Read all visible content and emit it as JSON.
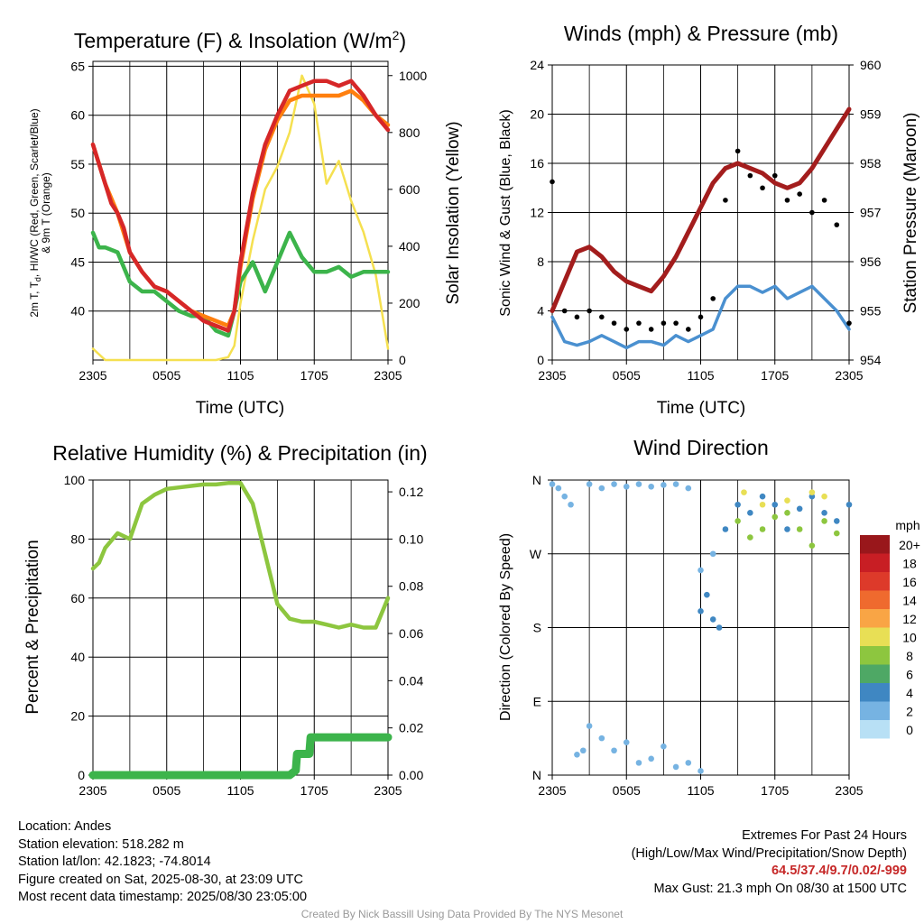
{
  "charts": {
    "temp": {
      "title_main": "Temperature (F) & Insolation (W/m",
      "title_sup": "2",
      "title_end": ")",
      "ylabel_l1_a": "2m T, T",
      "ylabel_l1_sub": "d",
      "ylabel_l1_b": ", HI/WC (Red, Green, Scarlet/Blue)",
      "ylabel_l2": "& 9m T (Orange)",
      "ylabel_right": "Solar Insolation (Yellow)",
      "xlabel": "Time (UTC)"
    },
    "wind": {
      "title": "Winds (mph) & Pressure (mb)",
      "ylabel_left": "Sonic Wind & Gust (Blue, Black)",
      "ylabel_right": "Station Pressure (Maroon)",
      "xlabel": "Time (UTC)"
    },
    "rh": {
      "title": "Relative Humidity (%) & Precipitation (in)",
      "ylabel_left": "Percent & Precipitation"
    },
    "dir": {
      "title": "Wind Direction",
      "ylabel_left": "Direction (Colored By Speed)",
      "legend_title": "mph"
    }
  },
  "chart_data": [
    {
      "type": "line",
      "title": "Temperature (F) & Insolation (W/m2)",
      "xlabel": "Time (UTC)",
      "x_ticks": [
        "2305",
        "0505",
        "1105",
        "1705",
        "2305"
      ],
      "ylim_left": [
        35,
        65.5
      ],
      "ylim_right": [
        0,
        1050
      ],
      "y_ticks_left": [
        40,
        45,
        50,
        55,
        60,
        65
      ],
      "y_ticks_right": [
        0,
        200,
        400,
        600,
        800,
        1000
      ],
      "series": [
        {
          "name": "2m T",
          "color": "#d62728",
          "axis": "left",
          "x": [
            0,
            0.5,
            1,
            1.5,
            2,
            2.5,
            3,
            4,
            5,
            6,
            7,
            8,
            9,
            10,
            11,
            11.5,
            12,
            13,
            14,
            15,
            16,
            17,
            18,
            19,
            20,
            21,
            22,
            23,
            24
          ],
          "y": [
            57,
            55,
            53,
            51,
            50,
            48.5,
            46,
            44,
            42.5,
            42,
            41,
            40,
            39,
            38.5,
            38,
            40,
            45,
            52,
            57,
            60,
            62.5,
            63,
            63.5,
            63.5,
            63,
            63.5,
            62,
            60,
            58.5
          ]
        },
        {
          "name": "9m T",
          "color": "#ff7f0e",
          "axis": "left",
          "x": [
            0,
            1,
            2,
            3,
            4,
            5,
            6,
            7,
            8,
            9,
            10,
            11,
            11.5,
            12,
            13,
            14,
            15,
            16,
            17,
            18,
            19,
            20,
            21,
            22,
            23,
            24
          ],
          "y": [
            57,
            53,
            50,
            46,
            44,
            42.5,
            42,
            41,
            40,
            39.5,
            39,
            38.5,
            40,
            44.5,
            51.5,
            56.5,
            59.5,
            61.5,
            62,
            62,
            62,
            62,
            62.5,
            61.5,
            60,
            59
          ]
        },
        {
          "name": "Td",
          "color": "#3cb44b",
          "axis": "left",
          "x": [
            0,
            0.5,
            1,
            2,
            3,
            4,
            5,
            6,
            7,
            8,
            9,
            10,
            11,
            11.5,
            12,
            13,
            14,
            15,
            16,
            17,
            18,
            19,
            20,
            21,
            22,
            23,
            24
          ],
          "y": [
            48,
            46.5,
            46.5,
            46,
            43,
            42,
            42,
            41,
            40,
            39.5,
            39.5,
            38,
            37.5,
            40,
            43,
            45,
            42,
            45,
            48,
            45.5,
            44,
            44,
            44.5,
            43.5,
            44,
            44,
            44
          ]
        },
        {
          "name": "Solar Insolation",
          "color": "#f5e050",
          "axis": "right",
          "x": [
            0,
            1,
            2,
            3,
            4,
            5,
            6,
            7,
            8,
            9,
            10,
            11,
            11.5,
            12,
            13,
            14,
            15,
            16,
            17,
            18,
            19,
            20,
            21,
            22,
            23,
            24
          ],
          "y": [
            40,
            0,
            0,
            0,
            0,
            0,
            0,
            0,
            0,
            0,
            0,
            10,
            50,
            200,
            420,
            600,
            680,
            800,
            1000,
            900,
            620,
            700,
            560,
            450,
            300,
            40
          ]
        }
      ]
    },
    {
      "type": "line",
      "title": "Winds (mph) & Pressure (mb)",
      "xlabel": "Time (UTC)",
      "x_ticks": [
        "2305",
        "0505",
        "1105",
        "1705",
        "2305"
      ],
      "ylim_left": [
        0,
        24
      ],
      "ylim_right": [
        954,
        960
      ],
      "y_ticks_left": [
        0,
        4,
        8,
        12,
        16,
        20,
        24
      ],
      "y_ticks_right": [
        954,
        955,
        956,
        957,
        958,
        959,
        960
      ],
      "series": [
        {
          "name": "Sonic Wind",
          "color": "#4a90d0",
          "axis": "left",
          "x": [
            0,
            1,
            2,
            3,
            4,
            5,
            6,
            7,
            8,
            9,
            10,
            11,
            12,
            13,
            14,
            15,
            16,
            17,
            18,
            19,
            20,
            21,
            22,
            23,
            24
          ],
          "y": [
            3.5,
            1.5,
            1.2,
            1.5,
            2,
            1.5,
            1,
            1.5,
            1.5,
            1.2,
            2,
            1.5,
            2,
            2.5,
            5,
            6,
            6,
            5.5,
            6,
            5,
            5.5,
            6,
            5,
            4,
            2.5
          ]
        },
        {
          "name": "Gust",
          "color": "#000000",
          "axis": "left",
          "x": [
            0,
            1,
            2,
            3,
            4,
            5,
            6,
            7,
            8,
            9,
            10,
            11,
            12,
            13,
            14,
            15,
            16,
            17,
            18,
            19,
            20,
            21,
            22,
            23,
            24
          ],
          "y": [
            14.5,
            4,
            3.5,
            4,
            3.5,
            3,
            2.5,
            3,
            2.5,
            3,
            3,
            2.5,
            3.5,
            5,
            13,
            17,
            15,
            14,
            15,
            13,
            13.5,
            12,
            13,
            11,
            3
          ]
        },
        {
          "name": "Station Pressure",
          "color": "#a31d1d",
          "axis": "right",
          "x": [
            0,
            1,
            2,
            3,
            4,
            5,
            6,
            7,
            8,
            9,
            10,
            11,
            12,
            13,
            14,
            15,
            16,
            17,
            18,
            19,
            20,
            21,
            22,
            23,
            24
          ],
          "y": [
            955,
            955.6,
            956.2,
            956.3,
            956.1,
            955.8,
            955.6,
            955.5,
            955.4,
            955.7,
            956.1,
            956.6,
            957.1,
            957.6,
            957.9,
            958,
            957.9,
            957.8,
            957.6,
            957.5,
            957.6,
            957.9,
            958.3,
            958.7,
            959.1
          ]
        }
      ]
    },
    {
      "type": "line",
      "title": "Relative Humidity (%) & Precipitation (in)",
      "ylabel": "Percent & Precipitation",
      "x_ticks": [
        "2305",
        "0505",
        "1105",
        "1705",
        "2305"
      ],
      "ylim_left": [
        0,
        100
      ],
      "ylim_right": [
        0,
        0.125
      ],
      "y_ticks_left": [
        0,
        20,
        40,
        60,
        80,
        100
      ],
      "y_ticks_right": [
        "0.00",
        "0.02",
        "0.04",
        "0.06",
        "0.08",
        "0.10",
        "0.12"
      ],
      "series": [
        {
          "name": "Relative Humidity",
          "color": "#8dc63f",
          "axis": "left",
          "x": [
            0,
            0.5,
            1,
            2,
            3,
            3.5,
            4,
            5,
            6,
            7,
            8,
            9,
            10,
            11,
            12,
            13,
            14,
            15,
            16,
            17,
            18,
            19,
            20,
            21,
            22,
            23,
            24
          ],
          "y": [
            70,
            72,
            77,
            82,
            80,
            86,
            92,
            95,
            97,
            97.5,
            98,
            98.5,
            98.5,
            99,
            99,
            92,
            75,
            58,
            53,
            52,
            52,
            51,
            50,
            51,
            50,
            50,
            60
          ]
        },
        {
          "name": "Precipitation",
          "color": "#3cb44b",
          "axis": "right",
          "x": [
            0,
            16,
            16.5,
            16.6,
            17,
            17.6,
            17.7,
            18,
            24
          ],
          "y": [
            0,
            0,
            0.002,
            0.009,
            0.009,
            0.009,
            0.016,
            0.016,
            0.016
          ]
        }
      ]
    },
    {
      "type": "scatter",
      "title": "Wind Direction",
      "ylabel": "Direction (Colored By Speed)",
      "x_ticks": [
        "2305",
        "0505",
        "1105",
        "1705",
        "2305"
      ],
      "y_ticks": [
        "N",
        "E",
        "S",
        "W",
        "N"
      ],
      "ylim": [
        0,
        360
      ],
      "legend": {
        "title": "mph",
        "labels": [
          "20+",
          "18",
          "16",
          "14",
          "12",
          "10",
          "8",
          "6",
          "4",
          "2",
          "0"
        ],
        "colors": [
          "#99171b",
          "#c81e24",
          "#dd3a2a",
          "#ef6a2e",
          "#f9a545",
          "#e8df55",
          "#8dc63f",
          "#4ea865",
          "#3f87c2",
          "#76b3e2",
          "#b8e0f5"
        ]
      },
      "clusters": [
        {
          "speed": 2,
          "x": [
            0,
            0.5,
            1,
            1.5,
            2,
            2.5,
            3,
            4,
            5,
            6,
            7,
            8,
            9,
            10,
            11,
            12
          ],
          "y": [
            355,
            350,
            340,
            330,
            25,
            30,
            60,
            45,
            30,
            40,
            15,
            20,
            35,
            10,
            15,
            5
          ]
        },
        {
          "speed": 1,
          "x": [
            3,
            4,
            5,
            6,
            7,
            8,
            9,
            10,
            11,
            12,
            13
          ],
          "y": [
            355,
            350,
            355,
            352,
            355,
            352,
            354,
            355,
            350,
            250,
            270
          ]
        },
        {
          "speed": 4,
          "x": [
            12,
            12.5,
            13,
            13.5,
            14,
            15,
            16,
            17,
            18,
            19,
            20,
            21,
            22,
            23,
            24
          ],
          "y": [
            200,
            220,
            190,
            180,
            300,
            330,
            320,
            340,
            330,
            300,
            325,
            340,
            320,
            310,
            330
          ]
        },
        {
          "speed": 7,
          "x": [
            15,
            16,
            17,
            18,
            19,
            20,
            21,
            22,
            23
          ],
          "y": [
            310,
            290,
            300,
            315,
            320,
            300,
            280,
            310,
            295
          ]
        },
        {
          "speed": 9,
          "x": [
            15.5,
            17,
            19,
            21,
            22
          ],
          "y": [
            345,
            330,
            335,
            345,
            340
          ]
        }
      ]
    }
  ],
  "info": {
    "location": "Location: Andes",
    "elevation": "Station elevation: 518.282 m",
    "latlon": "Station lat/lon: 42.1823; -74.8014",
    "created": "Figure created on Sat, 2025-08-30, at 23:09 UTC",
    "recent": "Most recent data timestamp: 2025/08/30 23:05:00",
    "extremes_title": "Extremes For Past 24 Hours",
    "extremes_sub": "(High/Low/Max Wind/Precipitation/Snow Depth)",
    "extremes_values": "64.5/37.4/9.7/0.02/-999",
    "max_gust": "Max Gust: 21.3 mph On 08/30 at 1500 UTC",
    "credit": "Created By Nick Bassill Using Data Provided By The NYS Mesonet"
  }
}
